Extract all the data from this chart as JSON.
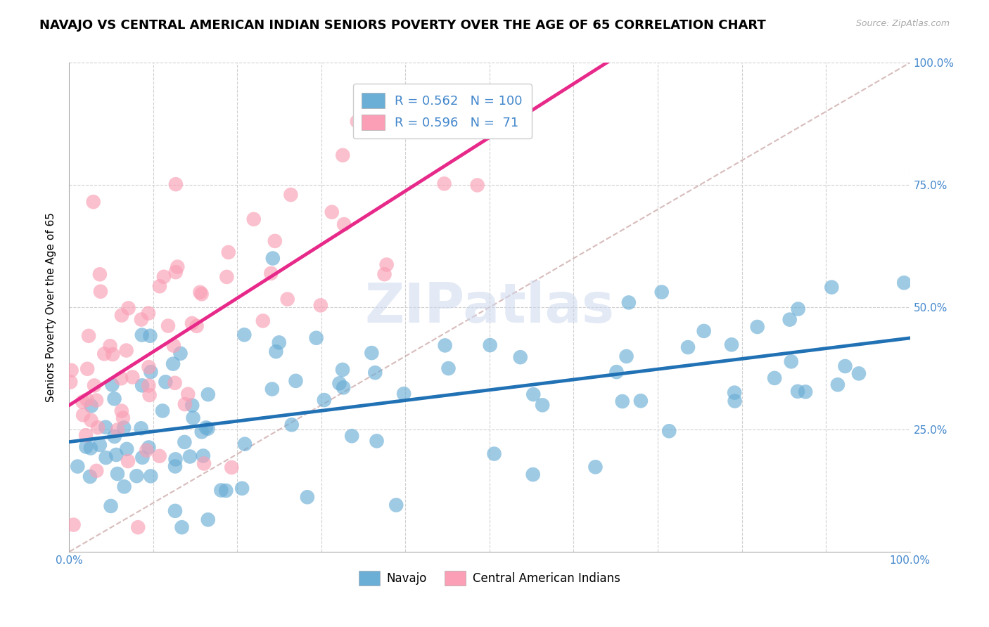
{
  "title": "NAVAJO VS CENTRAL AMERICAN INDIAN SENIORS POVERTY OVER THE AGE OF 65 CORRELATION CHART",
  "source": "Source: ZipAtlas.com",
  "ylabel": "Seniors Poverty Over the Age of 65",
  "xlim": [
    0,
    1
  ],
  "ylim": [
    0,
    1
  ],
  "legend_r1": "0.562",
  "legend_n1": "100",
  "legend_r2": "0.596",
  "legend_n2": "71",
  "color_navajo": "#6baed6",
  "color_central": "#fa9fb5",
  "color_trendline_navajo": "#2171b5",
  "color_trendline_central": "#e7298a",
  "color_diagonal": "#c8a0a0",
  "color_grid": "#d0d0d0",
  "color_axis_labels": "#4488cc",
  "title_fontsize": 13,
  "axis_label_fontsize": 11,
  "tick_fontsize": 11
}
